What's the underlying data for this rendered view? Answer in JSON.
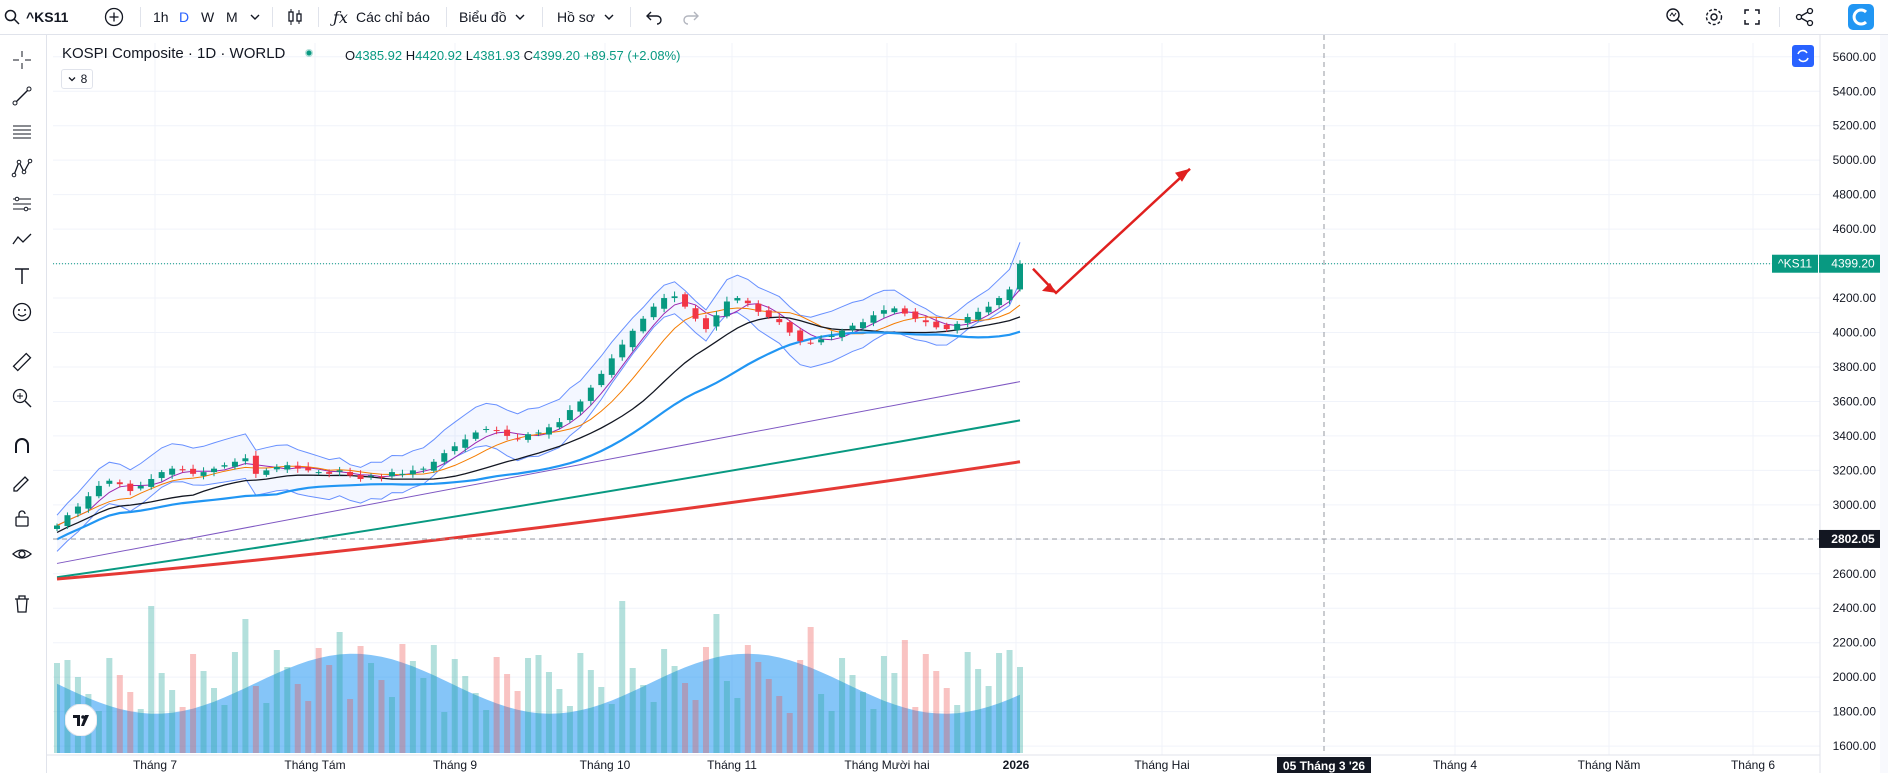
{
  "toolbar": {
    "symbol": "^KS11",
    "intervals": [
      "1h",
      "D",
      "W",
      "M"
    ],
    "active_interval": "D",
    "indicators_label": "Các chỉ báo",
    "chart_type_label": "Biểu đồ",
    "profile_label": "Hồ sơ"
  },
  "legend": {
    "title": "KOSPI Composite · 1D · WORLD",
    "o_label": "O",
    "o": "4385.92",
    "h_label": "H",
    "h": "4420.92",
    "l_label": "L",
    "l": "4381.93",
    "c_label": "C",
    "c": "4399.20",
    "change": "+89.57 (+2.08%)",
    "collapsed_count": "8"
  },
  "colors": {
    "up": "#089981",
    "down": "#f23645",
    "bb": "#2962ff",
    "ma_orange": "#f57c00",
    "ma_purple": "#9c27b0",
    "ma_black": "#131722",
    "ma_blue": "#2196f3",
    "ma_violet": "#7e57c2",
    "ma_green": "#089981",
    "ma_red": "#e53935"
  },
  "chart_data": {
    "type": "candlestick",
    "title": "KOSPI Composite · 1D · WORLD",
    "y_ticks": [
      5600,
      5400,
      5200,
      5000,
      4800,
      4600,
      4400,
      4200,
      4000,
      3800,
      3600,
      3400,
      3200,
      3000,
      2800,
      2600,
      2400,
      2200,
      2000,
      1800,
      1600
    ],
    "y_tick_labels": [
      "5600.00",
      "5400.00",
      "5200.00",
      "5000.00",
      "4800.00",
      "4600.00",
      "4400.00",
      "4200.00",
      "4000.00",
      "3800.00",
      "3600.00",
      "3400.00",
      "3200.00",
      "3000.00",
      "2800.00",
      "2600.00",
      "2400.00",
      "2200.00",
      "2000.00",
      "1800.00",
      "1600.00"
    ],
    "ylim": [
      1560,
      5680
    ],
    "x_labels": [
      "Tháng 7",
      "Tháng Tám",
      "Tháng 9",
      "Tháng 10",
      "Tháng 11",
      "Tháng Mười hai",
      "2026",
      "Tháng Hai",
      "Tháng 4",
      "Tháng Năm",
      "Tháng 6"
    ],
    "crosshair_x_label": "05 Tháng 3 '26",
    "crosshair_y_label": "2802.05",
    "last_price_symbol": "^KS11",
    "last_price_label": "4399.20",
    "last_price": 4399.2,
    "close_series": [
      2880,
      2940,
      2990,
      3050,
      3110,
      3140,
      3120,
      3080,
      3110,
      3150,
      3190,
      3210,
      3200,
      3180,
      3190,
      3210,
      3230,
      3250,
      3270,
      3180,
      3200,
      3220,
      3230,
      3210,
      3200,
      3190,
      3180,
      3200,
      3170,
      3150,
      3170,
      3160,
      3190,
      3180,
      3200,
      3210,
      3250,
      3300,
      3340,
      3380,
      3420,
      3440,
      3430,
      3400,
      3380,
      3410,
      3420,
      3450,
      3480,
      3550,
      3600,
      3680,
      3760,
      3850,
      3930,
      4010,
      4080,
      4150,
      4200,
      4210,
      4150,
      4080,
      4020,
      4100,
      4180,
      4200,
      4170,
      4120,
      4090,
      4060,
      4000,
      3950,
      3940,
      3960,
      3980,
      4010,
      4040,
      4060,
      4100,
      4130,
      4140,
      4110,
      4080,
      4060,
      4030,
      4020,
      4050,
      4090,
      4120,
      4150,
      4200,
      4250,
      4399.2
    ]
  }
}
